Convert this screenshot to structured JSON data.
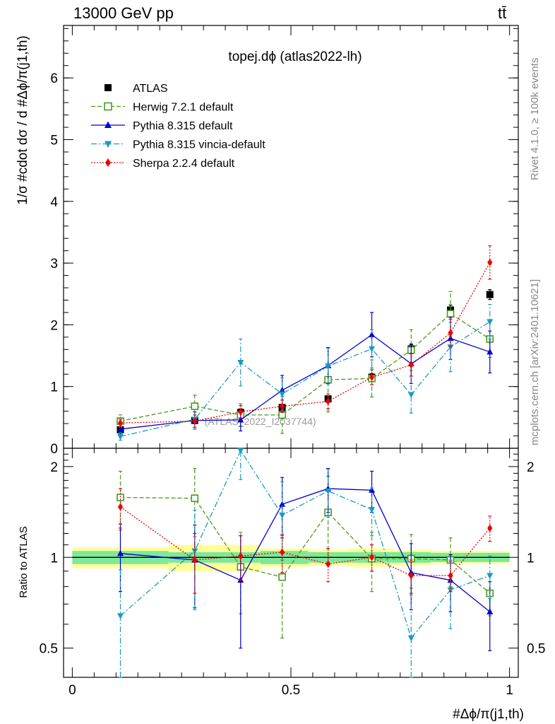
{
  "header": {
    "left": "13000 GeV pp",
    "right": "tt̄"
  },
  "side_labels": {
    "rivet": "Rivet 4.1.0, ≥ 100k events",
    "mcplots": "mcplots.cern.ch [arXiv:2401.10621]"
  },
  "colors": {
    "ATLAS": "#000000",
    "Herwig": "#4a9a1a",
    "Pythia": "#0000d0",
    "Vincia": "#1a9abf",
    "Sherpa": "#ee0000",
    "band_inner": "#7fe89a",
    "band_outer": "#ffff99"
  },
  "chart_data": [
    {
      "type": "scatter",
      "panel": "main",
      "title": "topej.dϕ (atlas2022-lh)",
      "watermark": "(ATLAS_2022_I2037744)",
      "ylabel": "1/σ #cdot dσ / d #Δϕ/π(j1,th)",
      "ylim": [
        0,
        6.85
      ],
      "yticks": [
        0,
        1,
        2,
        3,
        4,
        5,
        6
      ],
      "x": [
        0.11,
        0.28,
        0.385,
        0.48,
        0.585,
        0.685,
        0.775,
        0.865,
        0.955
      ],
      "xlim": [
        -0.02,
        1.02
      ],
      "series": [
        {
          "name": "ATLAS",
          "key": "ATLAS",
          "marker": "square-filled",
          "line": "none",
          "values": [
            0.3,
            0.45,
            0.58,
            0.66,
            0.8,
            1.15,
            1.61,
            2.24,
            2.49
          ],
          "errors": [
            0.04,
            0.05,
            0.05,
            0.05,
            0.05,
            0.06,
            0.07,
            0.08,
            0.08
          ]
        },
        {
          "name": "Herwig 7.2.1 default",
          "key": "Herwig",
          "marker": "square-open",
          "line": "dashed",
          "values": [
            0.44,
            0.68,
            0.54,
            0.54,
            1.11,
            1.13,
            1.59,
            2.18,
            1.77
          ],
          "errors": [
            0.1,
            0.18,
            0.18,
            0.3,
            0.52,
            0.3,
            0.33,
            0.36,
            0.3
          ]
        },
        {
          "name": "Pythia 8.315 default",
          "key": "Pythia",
          "marker": "triangle-up",
          "line": "solid",
          "values": [
            0.31,
            0.45,
            0.46,
            0.94,
            1.34,
            1.84,
            1.37,
            1.78,
            1.56
          ],
          "errors": [
            0.08,
            0.14,
            0.18,
            0.24,
            0.29,
            0.36,
            0.32,
            0.34,
            0.34
          ]
        },
        {
          "name": "Pythia 8.315 vincia-default",
          "key": "Vincia",
          "marker": "triangle-down",
          "line": "dashdot",
          "values": [
            0.19,
            0.47,
            1.39,
            0.88,
            1.33,
            1.61,
            0.87,
            1.64,
            2.05
          ],
          "errors": [
            0.06,
            0.16,
            0.38,
            0.26,
            0.29,
            0.31,
            0.3,
            0.4,
            0.28
          ]
        },
        {
          "name": "Sherpa 2.2.4 default",
          "key": "Sherpa",
          "marker": "diamond",
          "line": "dotted",
          "values": [
            0.41,
            0.44,
            0.59,
            0.68,
            0.76,
            1.15,
            1.35,
            1.87,
            3.01
          ],
          "errors": [
            0.06,
            0.1,
            0.1,
            0.1,
            0.12,
            0.12,
            0.18,
            0.22,
            0.27
          ]
        }
      ]
    },
    {
      "type": "scatter",
      "panel": "ratio",
      "ylabel": "Ratio to ATLAS",
      "xlabel": "#Δϕ/π(j1,th)",
      "ylim": [
        0.4,
        2.3
      ],
      "yticks": [
        0.5,
        1,
        2
      ],
      "xticks": [
        0,
        0.5,
        1
      ],
      "x": [
        0.11,
        0.28,
        0.385,
        0.48,
        0.585,
        0.685,
        0.775,
        0.865,
        0.955
      ],
      "band_edges": [
        0,
        0.22,
        0.43,
        0.54,
        0.63,
        0.73,
        0.82,
        0.91,
        1.0
      ],
      "band_inner": [
        0.05,
        0.04,
        0.05,
        0.04,
        0.04,
        0.04,
        0.035,
        0.035,
        0.03
      ],
      "band_outer": [
        0.08,
        0.1,
        0.07,
        0.06,
        0.07,
        0.06,
        0.05,
        0.05,
        0.05
      ],
      "series": [
        {
          "name": "Herwig 7.2.1 default",
          "key": "Herwig",
          "marker": "square-open",
          "line": "dashed",
          "values": [
            1.58,
            1.57,
            0.93,
            0.86,
            1.41,
            0.99,
            0.99,
            0.98,
            0.76
          ],
          "errors": [
            0.35,
            0.4,
            0.28,
            0.32,
            0.45,
            0.22,
            0.2,
            0.18,
            0.12
          ]
        },
        {
          "name": "Pythia 8.315 default",
          "key": "Pythia",
          "marker": "triangle-up",
          "line": "solid",
          "values": [
            1.03,
            0.98,
            0.84,
            1.5,
            1.69,
            1.67,
            0.89,
            0.84,
            0.66
          ],
          "errors": [
            0.26,
            0.3,
            0.34,
            0.34,
            0.28,
            0.26,
            0.22,
            0.18,
            0.17
          ]
        },
        {
          "name": "Pythia 8.315 vincia-default",
          "key": "Vincia",
          "marker": "triangle-down",
          "line": "dashdot",
          "values": [
            0.64,
            1.05,
            2.26,
            1.38,
            1.66,
            1.44,
            0.54,
            0.78,
            0.87
          ],
          "errors": [
            0.27,
            0.38,
            0.45,
            0.4,
            0.3,
            0.26,
            0.21,
            0.2,
            0.14
          ]
        },
        {
          "name": "Sherpa 2.2.4 default",
          "key": "Sherpa",
          "marker": "diamond",
          "line": "dotted",
          "values": [
            1.47,
            0.98,
            1.01,
            1.04,
            0.95,
            1.0,
            0.87,
            0.87,
            1.25
          ],
          "errors": [
            0.22,
            0.22,
            0.17,
            0.15,
            0.12,
            0.1,
            0.11,
            0.1,
            0.12
          ]
        }
      ]
    }
  ]
}
